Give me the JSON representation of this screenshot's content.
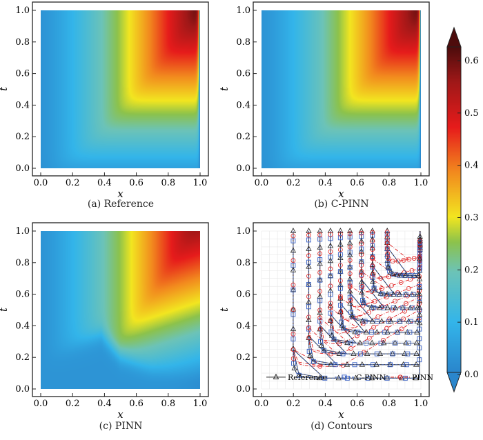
{
  "chart_data": [
    {
      "type": "heatmap",
      "panel": "a",
      "caption": "(a) Reference",
      "xlabel": "x",
      "ylabel": "t",
      "xlim": [
        0,
        1
      ],
      "ylim": [
        0,
        1
      ],
      "xticks": [
        "0.0",
        "0.2",
        "0.4",
        "0.6",
        "0.8",
        "1.0"
      ],
      "yticks": [
        "0.0",
        "0.2",
        "0.4",
        "0.6",
        "0.8",
        "1.0"
      ],
      "field": "reference"
    },
    {
      "type": "heatmap",
      "panel": "b",
      "caption": "(b) C-PINN",
      "xlabel": "x",
      "ylabel": "t",
      "xlim": [
        0,
        1
      ],
      "ylim": [
        0,
        1
      ],
      "xticks": [
        "0.0",
        "0.2",
        "0.4",
        "0.6",
        "0.8",
        "1.0"
      ],
      "yticks": [
        "0.0",
        "0.2",
        "0.4",
        "0.6",
        "0.8",
        "1.0"
      ],
      "field": "reference"
    },
    {
      "type": "heatmap",
      "panel": "c",
      "caption": "(c) PINN",
      "xlabel": "x",
      "ylabel": "t",
      "xlim": [
        0,
        1
      ],
      "ylim": [
        0,
        1
      ],
      "xticks": [
        "0.0",
        "0.2",
        "0.4",
        "0.6",
        "0.8",
        "1.0"
      ],
      "yticks": [
        "0.0",
        "0.2",
        "0.4",
        "0.6",
        "0.8",
        "1.0"
      ],
      "field": "pinn"
    },
    {
      "type": "line",
      "panel": "d",
      "caption": "(d) Contours",
      "xlabel": "x",
      "ylabel": "t",
      "xlim": [
        0,
        1
      ],
      "ylim": [
        0,
        1
      ],
      "xticks": [
        "0.0",
        "0.2",
        "0.4",
        "0.6",
        "0.8",
        "1.0"
      ],
      "yticks": [
        "0.0",
        "0.2",
        "0.4",
        "0.6",
        "0.8",
        "1.0"
      ],
      "grid": true,
      "contour_levels": [
        0.1,
        0.15,
        0.19,
        0.23,
        0.27,
        0.31,
        0.36,
        0.41,
        0.48
      ],
      "legend": {
        "placement": "bottom",
        "entries": [
          {
            "name": "Reference",
            "color": "#222222",
            "marker": "triangle",
            "style": "solid"
          },
          {
            "name": "C-PINN",
            "color": "#3b62c4",
            "marker": "square",
            "style": "dashed"
          },
          {
            "name": "PINN",
            "color": "#e02020",
            "marker": "circle",
            "style": "dashdot"
          }
        ]
      }
    }
  ],
  "colorbar": {
    "min": 0.0,
    "max": 0.65,
    "extend": "both",
    "ticks": [
      "0.0",
      "0.1",
      "0.2",
      "0.3",
      "0.4",
      "0.5",
      "0.6"
    ],
    "colormap": [
      "#2a86cc",
      "#33b5ea",
      "#6cc3b8",
      "#8cc24c",
      "#f2e620",
      "#f28a1e",
      "#e61b1b",
      "#a01818",
      "#4e0c0c"
    ]
  }
}
